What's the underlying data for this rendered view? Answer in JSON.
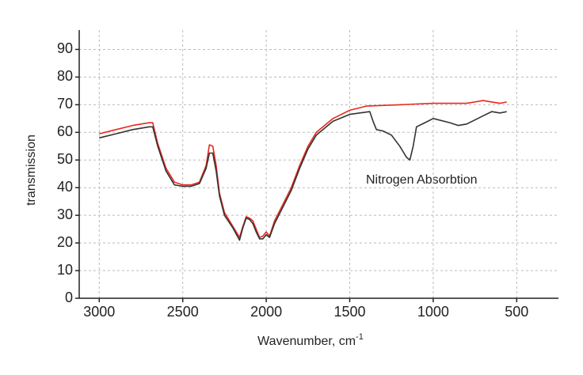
{
  "chart_data": {
    "type": "line",
    "ylabel": "transmission",
    "xlabel": "Wavenumber, cm",
    "xlabel_superscript": "-1",
    "annotation": "Nitrogen Absorbtion",
    "xlim": [
      3120,
      250
    ],
    "ylim": [
      0,
      97
    ],
    "xticks": [
      3000,
      2500,
      2000,
      1500,
      1000,
      500
    ],
    "yticks": [
      0,
      10,
      20,
      30,
      40,
      50,
      60,
      70,
      80,
      90
    ],
    "grid": true,
    "series": [
      {
        "color": "#e8281e",
        "x": [
          3000,
          2900,
          2800,
          2700,
          2680,
          2650,
          2600,
          2550,
          2500,
          2450,
          2400,
          2360,
          2340,
          2320,
          2300,
          2280,
          2250,
          2200,
          2160,
          2140,
          2120,
          2100,
          2080,
          2060,
          2040,
          2020,
          2000,
          1980,
          1950,
          1900,
          1850,
          1800,
          1750,
          1700,
          1600,
          1500,
          1400,
          1200,
          1000,
          800,
          700,
          650,
          600,
          560
        ],
        "values": [
          59.5,
          61,
          62.5,
          63.5,
          63.5,
          56,
          47,
          42,
          41,
          41,
          42,
          48,
          55.5,
          55,
          48,
          38,
          31,
          26,
          22,
          26,
          29.5,
          29,
          28,
          25,
          22,
          22.5,
          24,
          22.5,
          28,
          34,
          40,
          48,
          55,
          60,
          65,
          68,
          69.5,
          70,
          70.5,
          70.5,
          71.5,
          71,
          70.5,
          71
        ]
      },
      {
        "color": "#333333",
        "x": [
          3000,
          2900,
          2800,
          2700,
          2680,
          2650,
          2600,
          2550,
          2500,
          2450,
          2400,
          2360,
          2340,
          2320,
          2300,
          2280,
          2250,
          2200,
          2160,
          2140,
          2120,
          2100,
          2080,
          2060,
          2040,
          2020,
          2000,
          1980,
          1950,
          1900,
          1850,
          1800,
          1750,
          1700,
          1600,
          1500,
          1380,
          1360,
          1340,
          1300,
          1250,
          1200,
          1160,
          1140,
          1120,
          1100,
          1050,
          1000,
          900,
          850,
          800,
          700,
          650,
          600,
          560
        ],
        "values": [
          58,
          59.5,
          61,
          62,
          62,
          55,
          46,
          41,
          40.5,
          40.5,
          41.5,
          47,
          52.5,
          52.5,
          46,
          37,
          30,
          25.5,
          21,
          25.5,
          29,
          28.5,
          27,
          24,
          21.5,
          21.5,
          23,
          22,
          27,
          33,
          39,
          47,
          54,
          59,
          64,
          66.5,
          67.5,
          64,
          61,
          60.5,
          59,
          55,
          51,
          50,
          55,
          62,
          63.5,
          65,
          63.5,
          62.5,
          63,
          66,
          67.5,
          67,
          67.5
        ]
      }
    ]
  }
}
